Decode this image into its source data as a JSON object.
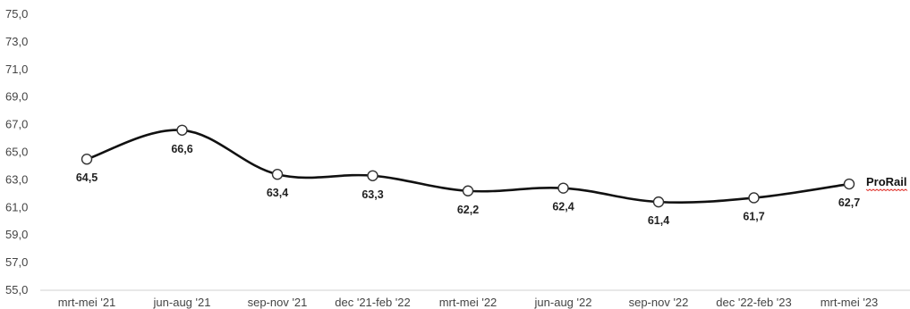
{
  "chart_data": {
    "type": "line",
    "title": "",
    "xlabel": "",
    "ylabel": "",
    "categories": [
      "mrt-mei '21",
      "jun-aug '21",
      "sep-nov '21",
      "dec '21-feb '22",
      "mrt-mei '22",
      "jun-aug '22",
      "sep-nov '22",
      "dec '22-feb '23",
      "mrt-mei '23"
    ],
    "series": [
      {
        "name": "ProRail",
        "values": [
          64.5,
          66.6,
          63.4,
          63.3,
          62.2,
          62.4,
          61.4,
          61.7,
          62.7
        ],
        "labels": [
          "64,5",
          "66,6",
          "63,4",
          "63,3",
          "62,2",
          "62,4",
          "61,4",
          "61,7",
          "62,7"
        ],
        "color": "#111111"
      }
    ],
    "ylim": [
      55,
      75
    ],
    "yticks": [
      55,
      57,
      59,
      61,
      63,
      65,
      67,
      69,
      71,
      73,
      75
    ],
    "ytick_labels": [
      "55,0",
      "57,0",
      "59,0",
      "61,0",
      "63,0",
      "65,0",
      "67,0",
      "69,0",
      "71,0",
      "73,0",
      "75,0"
    ],
    "grid": false,
    "legend": "end-of-line label",
    "line_style": "smooth",
    "marker": "open-circle"
  }
}
